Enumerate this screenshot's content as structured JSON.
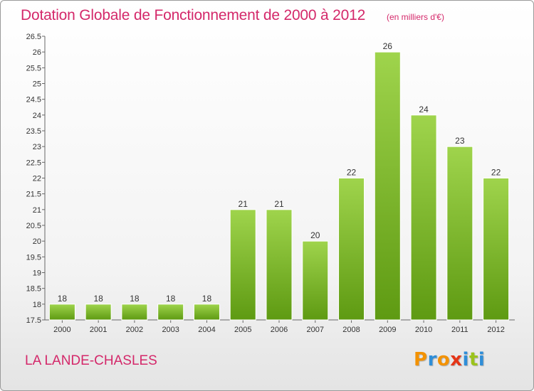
{
  "header": {
    "title": "Dotation Globale de Fonctionnement de 2000 à 2012",
    "unit": "(en milliers d'€)"
  },
  "footer": {
    "city": "LA LANDE-CHASLES",
    "logo": "Proxiti"
  },
  "colors": {
    "accent": "#d4286a",
    "bar_top": "#9fd44c",
    "bar_bottom": "#5e9a12",
    "logo_letters": [
      "#f39200",
      "#2f8ed8",
      "#f39200",
      "#e53517",
      "#2f8ed8",
      "#9bc31c",
      "#2f8ed8"
    ]
  },
  "chart_data": {
    "type": "bar",
    "categories": [
      "2000",
      "2001",
      "2002",
      "2003",
      "2004",
      "2005",
      "2006",
      "2007",
      "2008",
      "2009",
      "2010",
      "2011",
      "2012"
    ],
    "values": [
      18,
      18,
      18,
      18,
      18,
      21,
      21,
      20,
      22,
      26,
      24,
      23,
      22
    ],
    "data_labels": [
      "18",
      "18",
      "18",
      "18",
      "18",
      "21",
      "21",
      "20",
      "22",
      "26",
      "24",
      "23",
      "22"
    ],
    "title": "Dotation Globale de Fonctionnement de 2000 à 2012",
    "ylim": [
      17.5,
      26.5
    ],
    "yticks": [
      "17.5",
      "18",
      "18.5",
      "19",
      "19.5",
      "20",
      "20.5",
      "21",
      "21.5",
      "22",
      "22.5",
      "23",
      "23.5",
      "24",
      "24.5",
      "25",
      "25.5",
      "26",
      "26.5"
    ],
    "grid": false,
    "legend": "none"
  }
}
